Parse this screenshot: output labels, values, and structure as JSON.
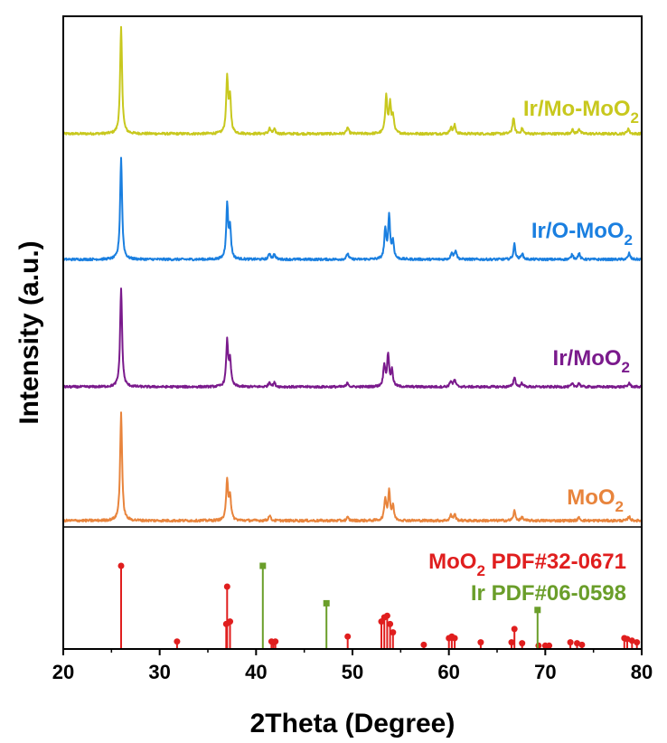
{
  "chart_data": {
    "type": "line",
    "xlabel": "2Theta (Degree)",
    "ylabel": "Intensity (a.u.)",
    "xlim": [
      20,
      80
    ],
    "xticks": [
      20,
      30,
      40,
      50,
      60,
      70,
      80
    ],
    "xtick_labels": [
      "20",
      "30",
      "40",
      "50",
      "60",
      "70",
      "80"
    ],
    "grid": false,
    "series": [
      {
        "name": "Ir/Mo-MoO2",
        "label_main": "Ir/Mo-MoO",
        "label_sub": "2",
        "color": "#c8c81e",
        "offset": 3,
        "peaks": [
          [
            26.0,
            1.0
          ],
          [
            37.0,
            0.52
          ],
          [
            37.3,
            0.32
          ],
          [
            41.4,
            0.05
          ],
          [
            41.9,
            0.04
          ],
          [
            49.5,
            0.06
          ],
          [
            53.5,
            0.36
          ],
          [
            53.9,
            0.27
          ],
          [
            54.2,
            0.16
          ],
          [
            60.2,
            0.06
          ],
          [
            60.6,
            0.08
          ],
          [
            66.7,
            0.15
          ],
          [
            67.6,
            0.05
          ],
          [
            72.8,
            0.04
          ],
          [
            73.5,
            0.05
          ],
          [
            78.6,
            0.05
          ]
        ]
      },
      {
        "name": "Ir/O-MoO2",
        "label_main": "Ir/O-MoO",
        "label_sub": "2",
        "color": "#1a7fe0",
        "offset": 2,
        "peaks": [
          [
            26.0,
            1.0
          ],
          [
            37.0,
            0.52
          ],
          [
            37.3,
            0.3
          ],
          [
            41.4,
            0.06
          ],
          [
            41.9,
            0.05
          ],
          [
            49.5,
            0.06
          ],
          [
            53.4,
            0.28
          ],
          [
            53.8,
            0.42
          ],
          [
            54.2,
            0.17
          ],
          [
            60.3,
            0.07
          ],
          [
            60.7,
            0.09
          ],
          [
            66.8,
            0.15
          ],
          [
            67.6,
            0.06
          ],
          [
            72.8,
            0.05
          ],
          [
            73.5,
            0.06
          ],
          [
            78.7,
            0.06
          ]
        ]
      },
      {
        "name": "Ir/MoO2",
        "label_main": "Ir/MoO",
        "label_sub": "2",
        "color": "#7a1a8c",
        "offset": 1,
        "peaks": [
          [
            26.0,
            1.0
          ],
          [
            37.0,
            0.45
          ],
          [
            37.3,
            0.26
          ],
          [
            41.4,
            0.05
          ],
          [
            41.9,
            0.04
          ],
          [
            49.5,
            0.04
          ],
          [
            53.3,
            0.22
          ],
          [
            53.7,
            0.32
          ],
          [
            54.1,
            0.16
          ],
          [
            60.2,
            0.06
          ],
          [
            60.6,
            0.07
          ],
          [
            66.8,
            0.1
          ],
          [
            67.6,
            0.04
          ],
          [
            72.8,
            0.03
          ],
          [
            73.5,
            0.04
          ],
          [
            78.7,
            0.04
          ]
        ]
      },
      {
        "name": "MoO2",
        "label_main": "MoO",
        "label_sub": "2",
        "color": "#e8843c",
        "offset": 0,
        "peaks": [
          [
            26.0,
            1.0
          ],
          [
            37.0,
            0.37
          ],
          [
            37.3,
            0.22
          ],
          [
            41.4,
            0.05
          ],
          [
            49.5,
            0.03
          ],
          [
            53.4,
            0.2
          ],
          [
            53.8,
            0.27
          ],
          [
            54.2,
            0.13
          ],
          [
            60.2,
            0.05
          ],
          [
            60.6,
            0.06
          ],
          [
            66.8,
            0.09
          ],
          [
            67.6,
            0.03
          ],
          [
            73.5,
            0.03
          ],
          [
            78.7,
            0.04
          ]
        ]
      }
    ],
    "references": [
      {
        "name": "MoO2 PDF#32-0671",
        "label_pre": "MoO",
        "label_sub": "2",
        "label_post": " PDF#32-0671",
        "color": "#e01e1e",
        "marker": "circle",
        "lines": [
          [
            26.0,
            1.0
          ],
          [
            31.8,
            0.09
          ],
          [
            36.9,
            0.3
          ],
          [
            37.0,
            0.75
          ],
          [
            37.3,
            0.33
          ],
          [
            41.6,
            0.09
          ],
          [
            41.8,
            0.08
          ],
          [
            42.0,
            0.09
          ],
          [
            49.5,
            0.15
          ],
          [
            53.0,
            0.33
          ],
          [
            53.3,
            0.38
          ],
          [
            53.6,
            0.4
          ],
          [
            53.9,
            0.3
          ],
          [
            54.2,
            0.2
          ],
          [
            57.4,
            0.05
          ],
          [
            60.0,
            0.13
          ],
          [
            60.3,
            0.15
          ],
          [
            60.6,
            0.13
          ],
          [
            63.3,
            0.08
          ],
          [
            66.5,
            0.08
          ],
          [
            66.8,
            0.24
          ],
          [
            67.6,
            0.07
          ],
          [
            69.3,
            0.04
          ],
          [
            70.0,
            0.04
          ],
          [
            70.4,
            0.04
          ],
          [
            72.6,
            0.08
          ],
          [
            73.3,
            0.07
          ],
          [
            73.8,
            0.05
          ],
          [
            78.2,
            0.13
          ],
          [
            78.5,
            0.12
          ],
          [
            79.0,
            0.1
          ],
          [
            79.5,
            0.08
          ]
        ]
      },
      {
        "name": "Ir PDF#06-0598",
        "label_pre": "Ir PDF#06-0598",
        "label_sub": "",
        "label_post": "",
        "color": "#6a9e2a",
        "marker": "square",
        "lines": [
          [
            40.7,
            1.0
          ],
          [
            47.3,
            0.55
          ],
          [
            69.2,
            0.47
          ]
        ]
      }
    ]
  }
}
